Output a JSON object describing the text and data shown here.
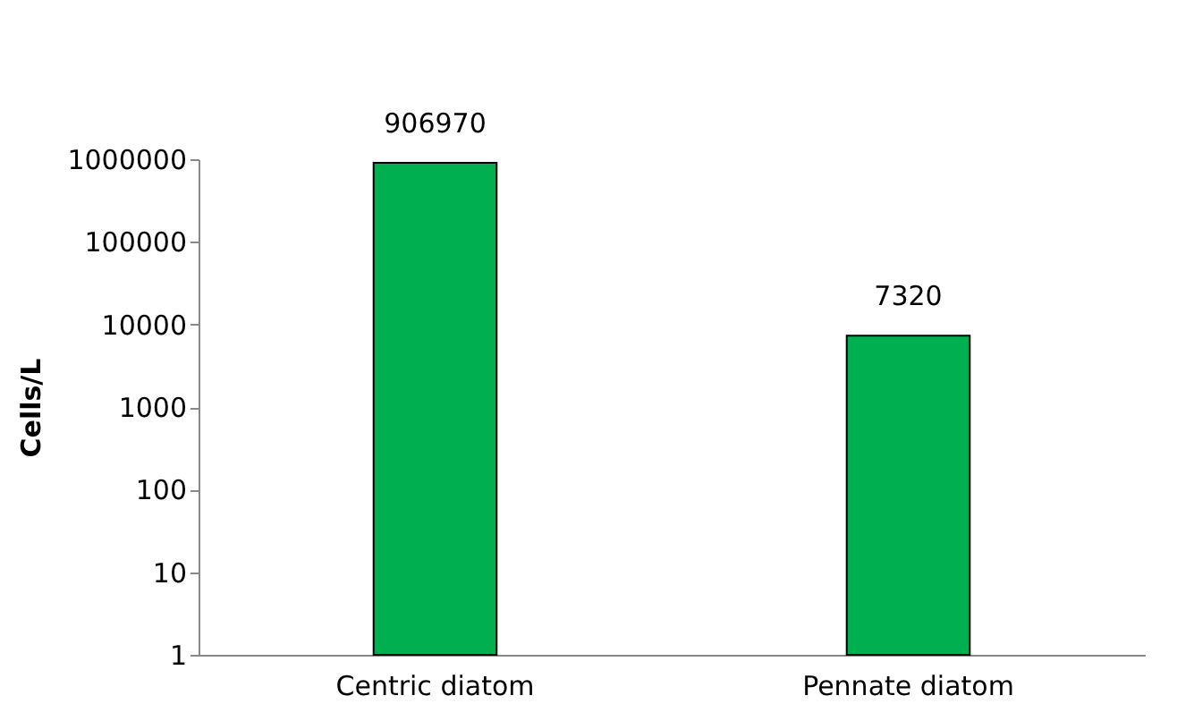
{
  "chart_data": {
    "type": "bar",
    "ylabel": "Cells/L",
    "categories": [
      "Centric diatom",
      "Pennate diatom"
    ],
    "series": [
      {
        "color": "#00b050",
        "values": [
          906970,
          7320
        ]
      }
    ],
    "log": true,
    "ylim": [
      1,
      1000000
    ],
    "yticks": [
      1,
      10,
      100,
      1000,
      10000,
      100000,
      1000000
    ],
    "grid": false,
    "legend": false,
    "data_labels": true
  }
}
